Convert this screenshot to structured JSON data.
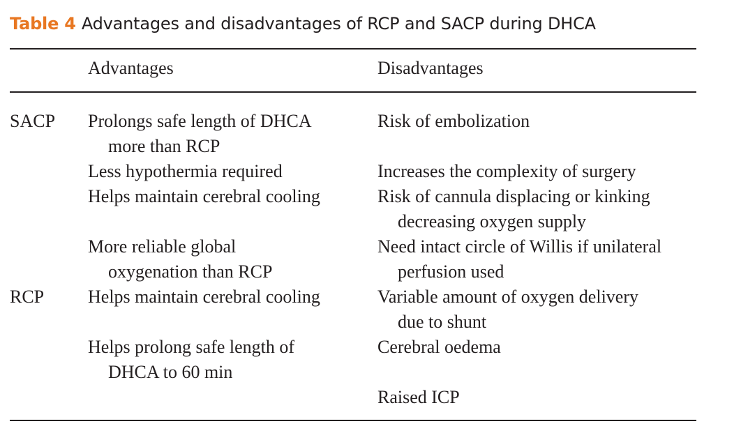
{
  "caption": {
    "label": "Table 4",
    "title": "Advantages and disadvantages of RCP and SACP during DHCA"
  },
  "table": {
    "headers": {
      "group": "",
      "advantages": "Advantages",
      "disadvantages": "Disadvantages"
    },
    "groups": [
      {
        "name": "SACP",
        "advantages": [
          [
            "Prolongs safe length of DHCA",
            "more than RCP"
          ],
          [
            "Less hypothermia required"
          ],
          [
            "Helps maintain cerebral cooling"
          ],
          [
            "More reliable global",
            "oxygenation than RCP"
          ]
        ],
        "disadvantages": [
          [
            "Risk of embolization"
          ],
          [
            "Increases the complexity of surgery"
          ],
          [
            "Risk of cannula displacing or kinking",
            "decreasing oxygen supply"
          ],
          [
            "Need intact circle of Willis if unilateral",
            "perfusion used"
          ]
        ]
      },
      {
        "name": "RCP",
        "advantages": [
          [
            "Helps maintain cerebral cooling"
          ],
          [
            "Helps prolong safe length of",
            "DHCA to 60 min"
          ]
        ],
        "disadvantages": [
          [
            "Variable amount of oxygen delivery",
            "due to shunt"
          ],
          [
            "Cerebral oedema"
          ],
          [
            "Raised ICP"
          ]
        ]
      }
    ]
  }
}
